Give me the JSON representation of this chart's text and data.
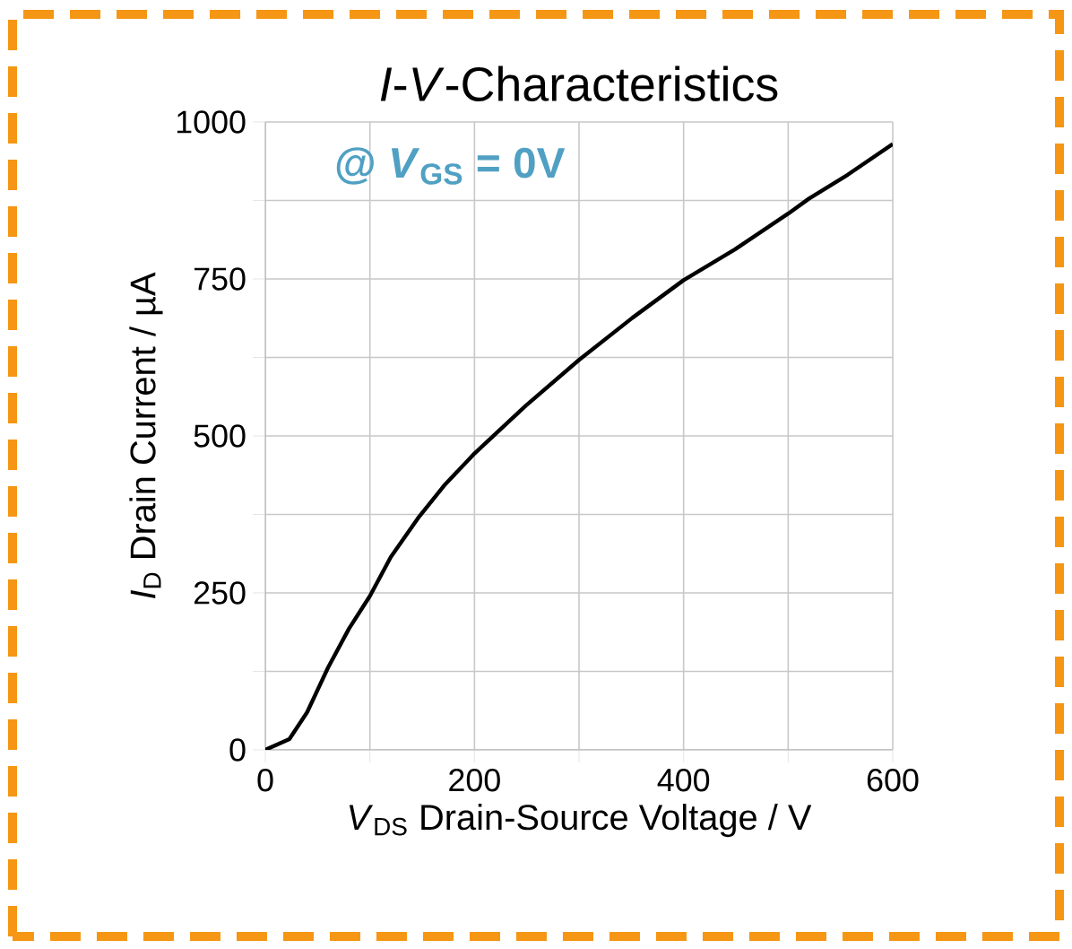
{
  "chart_data": {
    "type": "line",
    "title": "*I*-*V*-Characteristics",
    "xlabel": "*V*$_{DS}$ Drain-Source Voltage / V",
    "ylabel": "*I*$_{D}$ Drain Current / µA",
    "annotations": [
      "@ *V*$_{GS}$ = 0V"
    ],
    "x": [
      0,
      23,
      40,
      60,
      80,
      100,
      120,
      146,
      171,
      200,
      249,
      300,
      351,
      400,
      449,
      500,
      520,
      557,
      600
    ],
    "series": [
      {
        "color": "#000000",
        "values": [
          0,
          17,
          60,
          131,
          193,
          245,
          307,
          369,
          421,
          472,
          548,
          621,
          688,
          748,
          797,
          854,
          878,
          916,
          965
        ]
      }
    ],
    "xlim": [
      0,
      600
    ],
    "ylim": [
      0,
      1000
    ],
    "xticks": [
      0,
      {
        "value": 100,
        "label": null
      },
      200,
      {
        "value": 300,
        "label": null
      },
      400,
      {
        "value": 500,
        "label": null
      },
      600
    ],
    "yticks": [
      0,
      {
        "value": 125,
        "label": null
      },
      250,
      {
        "value": 375,
        "label": null
      },
      500,
      {
        "value": 625,
        "label": null
      },
      750,
      {
        "value": 875,
        "label": null
      },
      1000
    ],
    "grid": true,
    "marker": "none",
    "line_style": "solid"
  }
}
